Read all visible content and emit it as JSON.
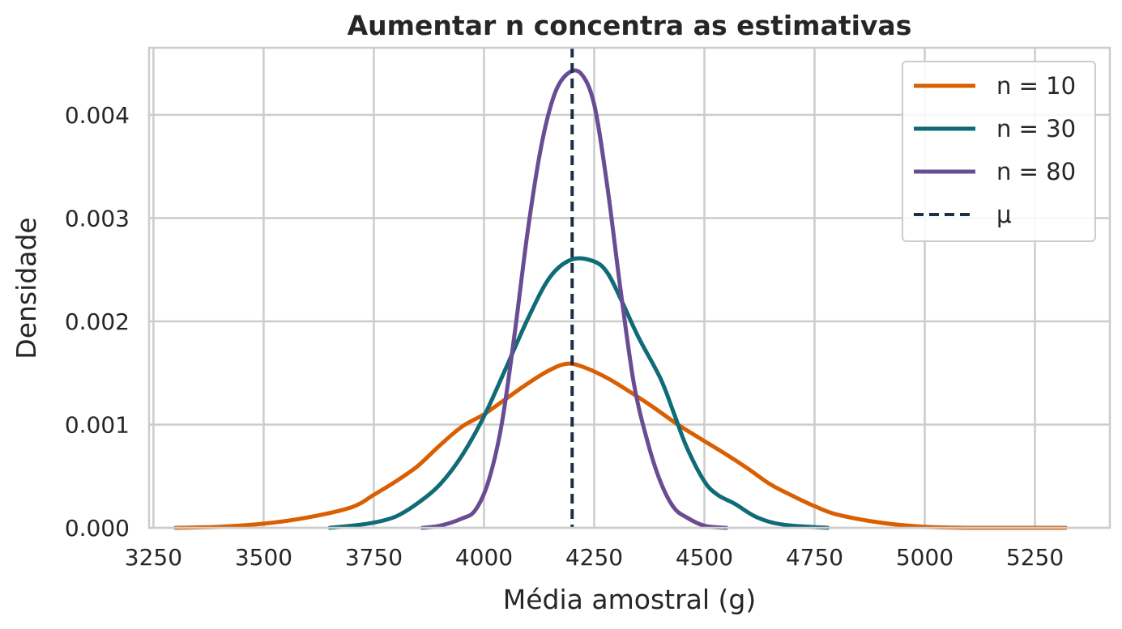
{
  "chart_data": {
    "type": "line",
    "title": "Aumentar n concentra as estimativas",
    "xlabel": "Média amostral (g)",
    "ylabel": "Densidade",
    "xlim": [
      3240,
      5420
    ],
    "ylim": [
      0,
      0.00465
    ],
    "x_ticks": [
      3250,
      3500,
      3750,
      4000,
      4250,
      4500,
      4750,
      5000,
      5250
    ],
    "y_ticks": [
      0.0,
      0.001,
      0.002,
      0.003,
      0.004
    ],
    "x_tick_labels": [
      "3250",
      "3500",
      "3750",
      "4000",
      "4250",
      "4500",
      "4750",
      "5000",
      "5250"
    ],
    "y_tick_labels": [
      "0.000",
      "0.001",
      "0.002",
      "0.003",
      "0.004"
    ],
    "grid": true,
    "legend_position": "top-right",
    "series": [
      {
        "name": "n = 10",
        "color": "#d95f02",
        "points": [
          [
            3300,
            0
          ],
          [
            3400,
            1e-05
          ],
          [
            3500,
            4e-05
          ],
          [
            3600,
            0.0001
          ],
          [
            3700,
            0.0002
          ],
          [
            3750,
            0.00032
          ],
          [
            3800,
            0.00045
          ],
          [
            3850,
            0.0006
          ],
          [
            3900,
            0.0008
          ],
          [
            3950,
            0.00098
          ],
          [
            4000,
            0.0011
          ],
          [
            4050,
            0.00125
          ],
          [
            4100,
            0.0014
          ],
          [
            4150,
            0.00153
          ],
          [
            4190,
            0.00159
          ],
          [
            4230,
            0.00155
          ],
          [
            4280,
            0.00145
          ],
          [
            4330,
            0.00132
          ],
          [
            4380,
            0.00118
          ],
          [
            4440,
            0.001
          ],
          [
            4500,
            0.00084
          ],
          [
            4550,
            0.00071
          ],
          [
            4600,
            0.00057
          ],
          [
            4650,
            0.00042
          ],
          [
            4700,
            0.00031
          ],
          [
            4750,
            0.00021
          ],
          [
            4800,
            0.00013
          ],
          [
            4900,
            5e-05
          ],
          [
            5000,
            1e-05
          ],
          [
            5100,
            0.0
          ],
          [
            5320,
            0
          ]
        ]
      },
      {
        "name": "n = 30",
        "color": "#0f6b77",
        "points": [
          [
            3650,
            0
          ],
          [
            3700,
            2e-05
          ],
          [
            3750,
            5e-05
          ],
          [
            3800,
            0.00011
          ],
          [
            3850,
            0.00024
          ],
          [
            3900,
            0.00042
          ],
          [
            3950,
            0.0007
          ],
          [
            4000,
            0.00108
          ],
          [
            4050,
            0.00155
          ],
          [
            4100,
            0.00203
          ],
          [
            4150,
            0.00243
          ],
          [
            4200,
            0.0026
          ],
          [
            4250,
            0.00258
          ],
          [
            4280,
            0.00247
          ],
          [
            4310,
            0.00222
          ],
          [
            4350,
            0.00185
          ],
          [
            4400,
            0.00145
          ],
          [
            4430,
            0.00112
          ],
          [
            4460,
            0.00078
          ],
          [
            4500,
            0.00045
          ],
          [
            4530,
            0.00032
          ],
          [
            4570,
            0.00023
          ],
          [
            4620,
            0.0001
          ],
          [
            4680,
            3e-05
          ],
          [
            4780,
            0
          ]
        ]
      },
      {
        "name": "n = 80",
        "color": "#6a4c93",
        "points": [
          [
            3860,
            0
          ],
          [
            3900,
            2e-05
          ],
          [
            3950,
            9e-05
          ],
          [
            3980,
            0.00017
          ],
          [
            4010,
            0.00045
          ],
          [
            4040,
            0.001
          ],
          [
            4070,
            0.0019
          ],
          [
            4100,
            0.0029
          ],
          [
            4130,
            0.0037
          ],
          [
            4160,
            0.0042
          ],
          [
            4190,
            0.0044
          ],
          [
            4220,
            0.0044
          ],
          [
            4250,
            0.0041
          ],
          [
            4280,
            0.0033
          ],
          [
            4310,
            0.0023
          ],
          [
            4340,
            0.0014
          ],
          [
            4370,
            0.00085
          ],
          [
            4400,
            0.00045
          ],
          [
            4430,
            0.0002
          ],
          [
            4460,
            0.0001
          ],
          [
            4500,
            2e-05
          ],
          [
            4550,
            0
          ]
        ]
      }
    ],
    "mean_line": {
      "name": "μ",
      "x": 4200,
      "color": "#1c2e4a"
    }
  }
}
